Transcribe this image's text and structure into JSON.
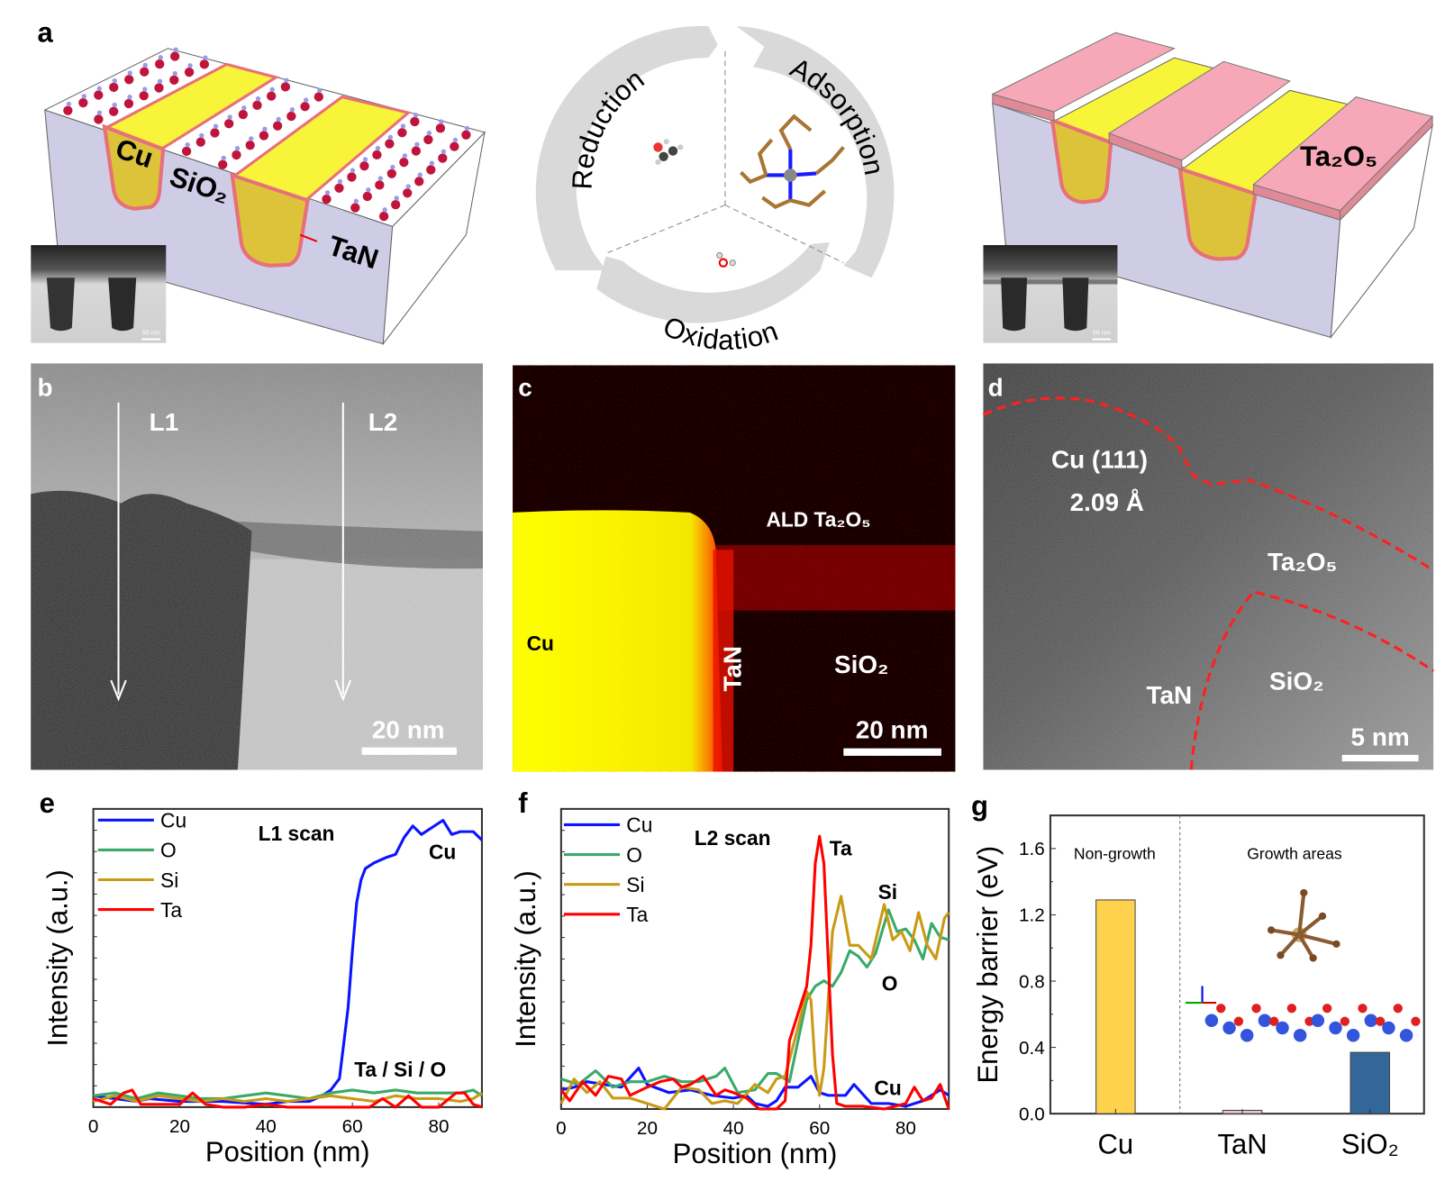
{
  "panels": {
    "a": {
      "label": "a",
      "left_labels": {
        "cu": "Cu",
        "sio2": "SiO₂",
        "tan": "TaN"
      },
      "right_labels": {
        "ta2o5": "Ta₂O₅"
      },
      "inset_scale": "50 nm",
      "cycle": {
        "step1": "Adsorption",
        "step2": "Oxidation",
        "step3": "Reduction"
      },
      "colors": {
        "cu": "#f5ef3c",
        "tan": "#e8707a",
        "sio2": "#cfcde6",
        "ta2o5": "#f7a8b8",
        "cycle_arrow": "#d9d9d9"
      }
    },
    "b": {
      "label": "b",
      "line1": "L1",
      "line2": "L2",
      "scale": "20 nm"
    },
    "c": {
      "label": "c",
      "ta2o5": "ALD Ta₂O₅",
      "cu": "Cu",
      "tan": "TaN",
      "sio2": "SiO₂",
      "scale": "20 nm"
    },
    "d": {
      "label": "d",
      "cu": "Cu (111)",
      "spacing": "2.09 Å",
      "ta2o5": "Ta₂O₅",
      "tan": "TaN",
      "sio2": "SiO₂",
      "scale": "5 nm"
    },
    "e": {
      "label": "e"
    },
    "f": {
      "label": "f"
    },
    "g": {
      "label": "g"
    }
  },
  "chart_data": [
    {
      "panel": "e",
      "type": "line",
      "xlabel": "Position (nm)",
      "ylabel": "Intensity (a.u.)",
      "xlim": [
        0,
        90
      ],
      "ylim": [
        0,
        105
      ],
      "xticks": [
        "0",
        "20",
        "40",
        "60",
        "80"
      ],
      "annotations": [
        "L1 scan",
        "Cu",
        "Ta / Si / O"
      ],
      "legend_placement": "top-left",
      "series": [
        {
          "name": "Cu",
          "color": "#0a14ff",
          "x": [
            0,
            5,
            10,
            13,
            20,
            30,
            40,
            45,
            50,
            53,
            55,
            57,
            59,
            60,
            61,
            62,
            63,
            65,
            68,
            70,
            72,
            74,
            76,
            78,
            81,
            83,
            85,
            88,
            90
          ],
          "y": [
            4,
            3,
            2,
            3,
            2,
            2,
            1,
            2,
            2,
            4,
            6,
            10,
            35,
            55,
            72,
            80,
            84,
            86,
            88,
            89,
            95,
            99,
            96,
            98,
            101,
            96,
            97,
            97,
            94
          ]
        },
        {
          "name": "O",
          "color": "#3aaa6a",
          "x": [
            0,
            5,
            10,
            15,
            20,
            25,
            30,
            35,
            40,
            45,
            50,
            55,
            60,
            65,
            70,
            75,
            80,
            85,
            88,
            90
          ],
          "y": [
            4,
            5,
            3,
            5,
            4,
            3,
            3,
            4,
            5,
            4,
            3,
            5,
            6,
            5,
            6,
            5,
            5,
            5,
            6,
            4
          ]
        },
        {
          "name": "Si",
          "color": "#c99a14",
          "x": [
            0,
            5,
            10,
            15,
            20,
            25,
            30,
            35,
            40,
            45,
            50,
            55,
            60,
            65,
            70,
            75,
            80,
            85,
            88,
            90
          ],
          "y": [
            2,
            4,
            2,
            4,
            3,
            2,
            3,
            2,
            3,
            2,
            3,
            4,
            3,
            2,
            4,
            3,
            3,
            2,
            3,
            5
          ]
        },
        {
          "name": "Ta",
          "color": "#ff0000",
          "x": [
            0,
            4,
            7,
            9,
            11,
            15,
            20,
            23,
            26,
            30,
            35,
            40,
            45,
            50,
            55,
            60,
            64,
            67,
            70,
            73,
            76,
            80,
            84,
            86,
            88,
            90
          ],
          "y": [
            3,
            1,
            5,
            6,
            1,
            1,
            1,
            5,
            1,
            0,
            0,
            1,
            0,
            0,
            0,
            0,
            0,
            3,
            0,
            4,
            0,
            0,
            5,
            5,
            1,
            0
          ]
        }
      ]
    },
    {
      "panel": "f",
      "type": "line",
      "xlabel": "Position (nm)",
      "ylabel": "Intensity (a.u.)",
      "xlim": [
        0,
        90
      ],
      "ylim": [
        0,
        110
      ],
      "xticks": [
        "0",
        "20",
        "40",
        "60",
        "80"
      ],
      "annotations": [
        "L2 scan",
        "Ta",
        "Si",
        "O",
        "Cu"
      ],
      "legend_placement": "top-left",
      "series": [
        {
          "name": "Cu",
          "color": "#0a14ff",
          "x": [
            0,
            3,
            6,
            10,
            14,
            18,
            20,
            25,
            30,
            35,
            40,
            43,
            45,
            48,
            50,
            52,
            55,
            58,
            60,
            62,
            66,
            68,
            72,
            76,
            80,
            84,
            88,
            90
          ],
          "y": [
            7,
            8,
            10,
            9,
            8,
            15,
            9,
            6,
            7,
            5,
            4,
            5,
            2,
            1,
            3,
            8,
            8,
            12,
            6,
            5,
            5,
            9,
            2,
            2,
            1,
            3,
            7,
            5
          ]
        },
        {
          "name": "O",
          "color": "#3aaa6a",
          "x": [
            0,
            4,
            8,
            12,
            16,
            20,
            24,
            28,
            32,
            36,
            38,
            41,
            45,
            48,
            50,
            53,
            55,
            57,
            59,
            61,
            63,
            65,
            67,
            69,
            71,
            73,
            76,
            78,
            80,
            82,
            84,
            86,
            88,
            90
          ],
          "y": [
            11,
            9,
            14,
            8,
            10,
            10,
            12,
            10,
            10,
            12,
            15,
            6,
            7,
            13,
            13,
            10,
            25,
            40,
            45,
            47,
            45,
            50,
            58,
            56,
            52,
            57,
            73,
            65,
            66,
            62,
            55,
            68,
            63,
            62
          ]
        },
        {
          "name": "Si",
          "color": "#c99a14",
          "x": [
            0,
            3,
            6,
            9,
            12,
            16,
            20,
            24,
            28,
            32,
            35,
            38,
            41,
            45,
            48,
            50,
            52,
            55,
            57,
            58,
            59,
            60,
            61,
            62,
            63,
            65,
            67,
            69,
            72,
            75,
            77,
            79,
            81,
            83,
            85,
            87,
            89,
            90
          ],
          "y": [
            2,
            11,
            6,
            10,
            4,
            4,
            2,
            0,
            8,
            7,
            2,
            3,
            2,
            9,
            6,
            11,
            12,
            30,
            43,
            40,
            15,
            5,
            15,
            40,
            65,
            78,
            60,
            60,
            55,
            75,
            62,
            65,
            58,
            72,
            60,
            55,
            70,
            72
          ]
        },
        {
          "name": "Ta",
          "color": "#ff0000",
          "x": [
            0,
            2,
            5,
            8,
            11,
            14,
            16,
            20,
            23,
            26,
            28,
            30,
            33,
            36,
            38,
            40,
            43,
            46,
            50,
            52,
            53,
            55,
            57,
            58,
            59,
            60,
            61,
            62,
            63,
            64,
            66,
            70,
            75,
            80,
            82,
            84,
            86,
            88,
            90
          ],
          "y": [
            7,
            3,
            10,
            5,
            12,
            11,
            5,
            8,
            10,
            11,
            8,
            9,
            12,
            5,
            7,
            6,
            4,
            0,
            0,
            3,
            25,
            35,
            45,
            60,
            90,
            100,
            90,
            55,
            20,
            2,
            1,
            1,
            0,
            2,
            8,
            3,
            4,
            9,
            0
          ]
        }
      ]
    },
    {
      "panel": "g",
      "type": "bar",
      "ylabel": "Energy barrier (eV)",
      "ylim": [
        0,
        1.8
      ],
      "yticks": [
        "0.0",
        "0.4",
        "0.8",
        "1.2",
        "1.6"
      ],
      "categories": [
        "Cu",
        "TaN",
        "SiO₂"
      ],
      "values": [
        1.29,
        0.02,
        0.37
      ],
      "colors": [
        "#ffd24d",
        "#e8c8c8",
        "#336699"
      ],
      "regions": [
        "Non-growth",
        "Growth areas"
      ]
    }
  ]
}
